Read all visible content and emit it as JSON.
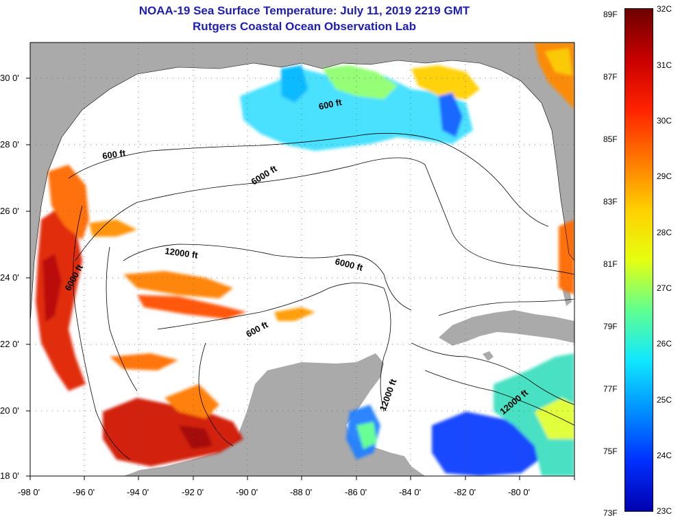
{
  "title": {
    "line1": "NOAA-19 Sea Surface Temperature:  July 11, 2019 2219 GMT",
    "line2": "Rutgers Coastal Ocean Observation Lab"
  },
  "axes": {
    "lon_labels": [
      "-98 0'",
      "-96 0'",
      "-94 0'",
      "-92 0'",
      "-90 0'",
      "-88 0'",
      "-86 0'",
      "-84 0'",
      "-82 0'",
      "-80 0'"
    ],
    "lat_labels": [
      "30 0'",
      "28 0'",
      "26 0'",
      "24 0'",
      "22 0'",
      "20 0'",
      "18 0'"
    ]
  },
  "contours": {
    "labels": [
      "600 ft",
      "600 ft",
      "6000 ft",
      "6000 ft",
      "12000 ft",
      "6000 ft",
      "600 ft",
      "12000 ft",
      "12000 ft"
    ]
  },
  "colorbar": {
    "f_labels": [
      "89F",
      "87F",
      "85F",
      "83F",
      "81F",
      "79F",
      "77F",
      "75F",
      "73F"
    ],
    "c_labels": [
      "32C",
      "31C",
      "30C",
      "29C",
      "28C",
      "27C",
      "26C",
      "25C",
      "24C",
      "23C"
    ],
    "colors": [
      "#6e0000",
      "#c80000",
      "#ff2200",
      "#ff7700",
      "#ffd000",
      "#e6ff10",
      "#60ff90",
      "#10e8ff",
      "#0090ff",
      "#0030ff",
      "#0000b0"
    ]
  },
  "style": {
    "land_color": "#aaaaaa",
    "water_color": "#ffffff",
    "title_color": "#1d1db4"
  }
}
